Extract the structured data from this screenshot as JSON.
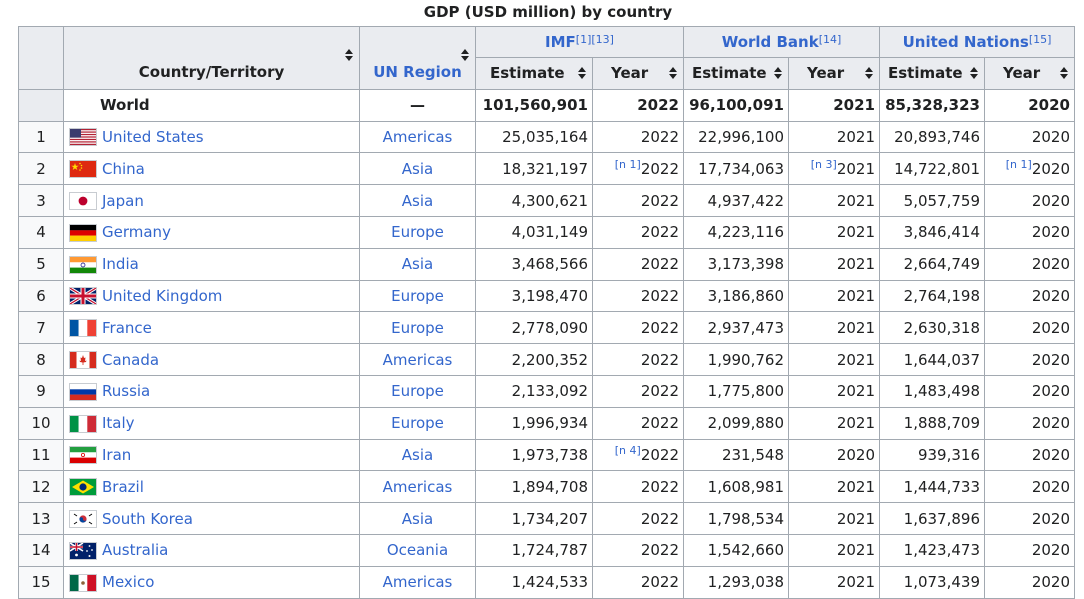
{
  "caption": "GDP (USD million) by country",
  "headers": {
    "country": "Country/Territory",
    "region": "UN Region",
    "imf": "IMF",
    "imf_refs": "[1][13]",
    "wb": "World Bank",
    "wb_refs": "[14]",
    "un": "United Nations",
    "un_refs": "[15]",
    "estimate": "Estimate",
    "year": "Year"
  },
  "world": {
    "label": "World",
    "region": "—",
    "imf_est": "101,560,901",
    "imf_year": "2022",
    "wb_est": "96,100,091",
    "wb_year": "2021",
    "un_est": "85,328,323",
    "un_year": "2020"
  },
  "rows": [
    {
      "rank": "1",
      "flag": "us-flag",
      "name": "United States",
      "region": "Americas",
      "imf_est": "25,035,164",
      "imf_note": "",
      "imf_year": "2022",
      "wb_est": "22,996,100",
      "wb_note": "",
      "wb_year": "2021",
      "un_est": "20,893,746",
      "un_note": "",
      "un_year": "2020"
    },
    {
      "rank": "2",
      "flag": "china-flag",
      "name": "China",
      "region": "Asia",
      "imf_est": "18,321,197",
      "imf_note": "[n 1]",
      "imf_year": "2022",
      "wb_est": "17,734,063",
      "wb_note": "[n 3]",
      "wb_year": "2021",
      "un_est": "14,722,801",
      "un_note": "[n 1]",
      "un_year": "2020"
    },
    {
      "rank": "3",
      "flag": "japan-flag",
      "name": "Japan",
      "region": "Asia",
      "imf_est": "4,300,621",
      "imf_note": "",
      "imf_year": "2022",
      "wb_est": "4,937,422",
      "wb_note": "",
      "wb_year": "2021",
      "un_est": "5,057,759",
      "un_note": "",
      "un_year": "2020"
    },
    {
      "rank": "4",
      "flag": "germany-flag",
      "name": "Germany",
      "region": "Europe",
      "imf_est": "4,031,149",
      "imf_note": "",
      "imf_year": "2022",
      "wb_est": "4,223,116",
      "wb_note": "",
      "wb_year": "2021",
      "un_est": "3,846,414",
      "un_note": "",
      "un_year": "2020"
    },
    {
      "rank": "5",
      "flag": "india-flag",
      "name": "India",
      "region": "Asia",
      "imf_est": "3,468,566",
      "imf_note": "",
      "imf_year": "2022",
      "wb_est": "3,173,398",
      "wb_note": "",
      "wb_year": "2021",
      "un_est": "2,664,749",
      "un_note": "",
      "un_year": "2020"
    },
    {
      "rank": "6",
      "flag": "uk-flag",
      "name": "United Kingdom",
      "region": "Europe",
      "imf_est": "3,198,470",
      "imf_note": "",
      "imf_year": "2022",
      "wb_est": "3,186,860",
      "wb_note": "",
      "wb_year": "2021",
      "un_est": "2,764,198",
      "un_note": "",
      "un_year": "2020"
    },
    {
      "rank": "7",
      "flag": "france-flag",
      "name": "France",
      "region": "Europe",
      "imf_est": "2,778,090",
      "imf_note": "",
      "imf_year": "2022",
      "wb_est": "2,937,473",
      "wb_note": "",
      "wb_year": "2021",
      "un_est": "2,630,318",
      "un_note": "",
      "un_year": "2020"
    },
    {
      "rank": "8",
      "flag": "canada-flag",
      "name": "Canada",
      "region": "Americas",
      "imf_est": "2,200,352",
      "imf_note": "",
      "imf_year": "2022",
      "wb_est": "1,990,762",
      "wb_note": "",
      "wb_year": "2021",
      "un_est": "1,644,037",
      "un_note": "",
      "un_year": "2020"
    },
    {
      "rank": "9",
      "flag": "russia-flag",
      "name": "Russia",
      "region": "Europe",
      "imf_est": "2,133,092",
      "imf_note": "",
      "imf_year": "2022",
      "wb_est": "1,775,800",
      "wb_note": "",
      "wb_year": "2021",
      "un_est": "1,483,498",
      "un_note": "",
      "un_year": "2020"
    },
    {
      "rank": "10",
      "flag": "italy-flag",
      "name": "Italy",
      "region": "Europe",
      "imf_est": "1,996,934",
      "imf_note": "",
      "imf_year": "2022",
      "wb_est": "2,099,880",
      "wb_note": "",
      "wb_year": "2021",
      "un_est": "1,888,709",
      "un_note": "",
      "un_year": "2020"
    },
    {
      "rank": "11",
      "flag": "iran-flag",
      "name": "Iran",
      "region": "Asia",
      "imf_est": "1,973,738",
      "imf_note": "[n 4]",
      "imf_year": "2022",
      "wb_est": "231,548",
      "wb_note": "",
      "wb_year": "2020",
      "un_est": "939,316",
      "un_note": "",
      "un_year": "2020"
    },
    {
      "rank": "12",
      "flag": "brazil-flag",
      "name": "Brazil",
      "region": "Americas",
      "imf_est": "1,894,708",
      "imf_note": "",
      "imf_year": "2022",
      "wb_est": "1,608,981",
      "wb_note": "",
      "wb_year": "2021",
      "un_est": "1,444,733",
      "un_note": "",
      "un_year": "2020"
    },
    {
      "rank": "13",
      "flag": "south-korea-flag",
      "name": "South Korea",
      "region": "Asia",
      "imf_est": "1,734,207",
      "imf_note": "",
      "imf_year": "2022",
      "wb_est": "1,798,534",
      "wb_note": "",
      "wb_year": "2021",
      "un_est": "1,637,896",
      "un_note": "",
      "un_year": "2020"
    },
    {
      "rank": "14",
      "flag": "australia-flag",
      "name": "Australia",
      "region": "Oceania",
      "imf_est": "1,724,787",
      "imf_note": "",
      "imf_year": "2022",
      "wb_est": "1,542,660",
      "wb_note": "",
      "wb_year": "2021",
      "un_est": "1,423,473",
      "un_note": "",
      "un_year": "2020"
    },
    {
      "rank": "15",
      "flag": "mexico-flag",
      "name": "Mexico",
      "region": "Americas",
      "imf_est": "1,424,533",
      "imf_note": "",
      "imf_year": "2022",
      "wb_est": "1,293,038",
      "wb_note": "",
      "wb_year": "2021",
      "un_est": "1,073,439",
      "un_note": "",
      "un_year": "2020"
    }
  ],
  "colors": {
    "link": "#3366cc",
    "header_bg": "#eaecf0",
    "border": "#a2a9b1",
    "text": "#202122"
  }
}
